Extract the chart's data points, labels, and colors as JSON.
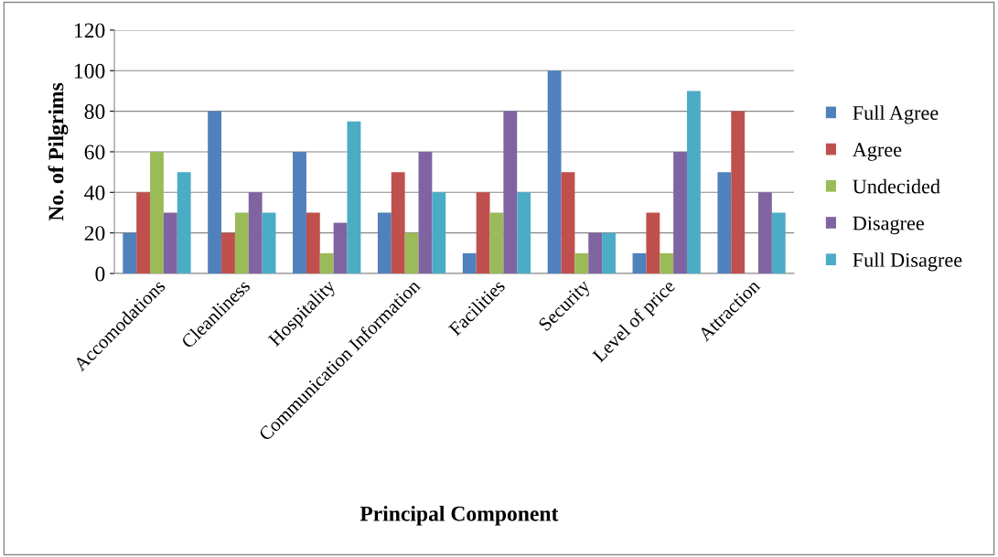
{
  "chart_data": {
    "type": "bar",
    "xlabel": "Principal Component",
    "ylabel": "No. of Pilgrims",
    "categories": [
      "Accomodations",
      "Cleanliness",
      "Hospitality",
      "Communication Information",
      "Facilities",
      "Security",
      "Level of price",
      "Attraction"
    ],
    "series": [
      {
        "name": "Full Agree",
        "color": "#4f81bd",
        "values": [
          20,
          80,
          60,
          30,
          10,
          100,
          10,
          50
        ]
      },
      {
        "name": "Agree",
        "color": "#c0504d",
        "values": [
          40,
          20,
          30,
          50,
          40,
          50,
          30,
          80
        ]
      },
      {
        "name": "Undecided",
        "color": "#9bbb59",
        "values": [
          60,
          30,
          10,
          20,
          30,
          10,
          10,
          0
        ]
      },
      {
        "name": "Disagree",
        "color": "#8064a2",
        "values": [
          30,
          40,
          25,
          60,
          80,
          20,
          60,
          40
        ]
      },
      {
        "name": "Full Disagree",
        "color": "#4bacc6",
        "values": [
          50,
          30,
          75,
          40,
          40,
          20,
          90,
          30
        ]
      }
    ],
    "ylim": [
      0,
      120
    ],
    "yticks": [
      0,
      20,
      40,
      60,
      80,
      100,
      120
    ],
    "grid": "y",
    "legend": "right"
  }
}
